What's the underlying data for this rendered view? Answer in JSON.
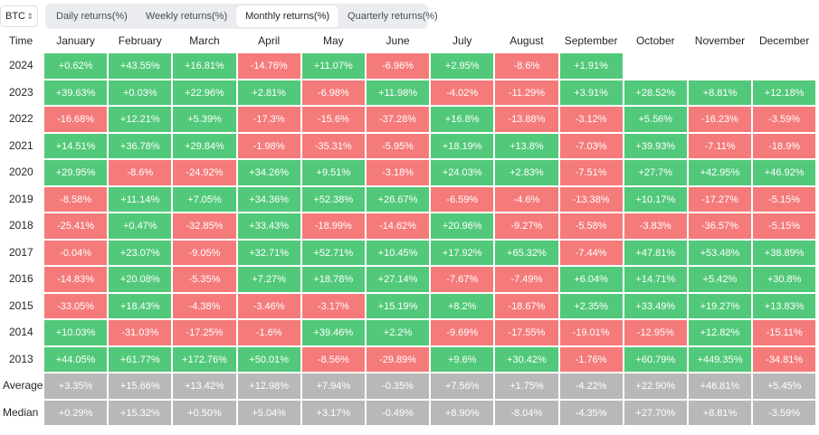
{
  "asset_select": {
    "value": "BTC"
  },
  "tabs": [
    {
      "label": "Daily returns(%)",
      "active": false
    },
    {
      "label": "Weekly returns(%)",
      "active": false
    },
    {
      "label": "Monthly returns(%)",
      "active": true
    },
    {
      "label": "Quarterly returns(%)",
      "active": false
    }
  ],
  "table": {
    "header_label": "Time",
    "months": [
      "January",
      "February",
      "March",
      "April",
      "May",
      "June",
      "July",
      "August",
      "September",
      "October",
      "November",
      "December"
    ],
    "rows": [
      {
        "label": "2024",
        "kind": "year",
        "values": [
          "+0.62%",
          "+43.55%",
          "+16.81%",
          "-14.76%",
          "+11.07%",
          "-6.96%",
          "+2.95%",
          "-8.6%",
          "+1.91%",
          "",
          "",
          ""
        ]
      },
      {
        "label": "2023",
        "kind": "year",
        "values": [
          "+39.63%",
          "+0.03%",
          "+22.96%",
          "+2.81%",
          "-6.98%",
          "+11.98%",
          "-4.02%",
          "-11.29%",
          "+3.91%",
          "+28.52%",
          "+8.81%",
          "+12.18%"
        ]
      },
      {
        "label": "2022",
        "kind": "year",
        "values": [
          "-16.68%",
          "+12.21%",
          "+5.39%",
          "-17.3%",
          "-15.6%",
          "-37.28%",
          "+16.8%",
          "-13.88%",
          "-3.12%",
          "+5.56%",
          "-16.23%",
          "-3.59%"
        ]
      },
      {
        "label": "2021",
        "kind": "year",
        "values": [
          "+14.51%",
          "+36.78%",
          "+29.84%",
          "-1.98%",
          "-35.31%",
          "-5.95%",
          "+18.19%",
          "+13.8%",
          "-7.03%",
          "+39.93%",
          "-7.11%",
          "-18.9%"
        ]
      },
      {
        "label": "2020",
        "kind": "year",
        "values": [
          "+29.95%",
          "-8.6%",
          "-24.92%",
          "+34.26%",
          "+9.51%",
          "-3.18%",
          "+24.03%",
          "+2.83%",
          "-7.51%",
          "+27.7%",
          "+42.95%",
          "+46.92%"
        ]
      },
      {
        "label": "2019",
        "kind": "year",
        "values": [
          "-8.58%",
          "+11.14%",
          "+7.05%",
          "+34.36%",
          "+52.38%",
          "+26.67%",
          "-6.59%",
          "-4.6%",
          "-13.38%",
          "+10.17%",
          "-17.27%",
          "-5.15%"
        ]
      },
      {
        "label": "2018",
        "kind": "year",
        "values": [
          "-25.41%",
          "+0.47%",
          "-32.85%",
          "+33.43%",
          "-18.99%",
          "-14.62%",
          "+20.96%",
          "-9.27%",
          "-5.58%",
          "-3.83%",
          "-36.57%",
          "-5.15%"
        ]
      },
      {
        "label": "2017",
        "kind": "year",
        "values": [
          "-0.04%",
          "+23.07%",
          "-9.05%",
          "+32.71%",
          "+52.71%",
          "+10.45%",
          "+17.92%",
          "+65.32%",
          "-7.44%",
          "+47.81%",
          "+53.48%",
          "+38.89%"
        ]
      },
      {
        "label": "2016",
        "kind": "year",
        "values": [
          "-14.83%",
          "+20.08%",
          "-5.35%",
          "+7.27%",
          "+18.78%",
          "+27.14%",
          "-7.67%",
          "-7.49%",
          "+6.04%",
          "+14.71%",
          "+5.42%",
          "+30.8%"
        ]
      },
      {
        "label": "2015",
        "kind": "year",
        "values": [
          "-33.05%",
          "+18.43%",
          "-4.38%",
          "-3.46%",
          "-3.17%",
          "+15.19%",
          "+8.2%",
          "-18.67%",
          "+2.35%",
          "+33.49%",
          "+19.27%",
          "+13.83%"
        ]
      },
      {
        "label": "2014",
        "kind": "year",
        "values": [
          "+10.03%",
          "-31.03%",
          "-17.25%",
          "-1.6%",
          "+39.46%",
          "+2.2%",
          "-9.69%",
          "-17.55%",
          "-19.01%",
          "-12.95%",
          "+12.82%",
          "-15.11%"
        ]
      },
      {
        "label": "2013",
        "kind": "year",
        "values": [
          "+44.05%",
          "+61.77%",
          "+172.76%",
          "+50.01%",
          "-8.56%",
          "-29.89%",
          "+9.6%",
          "+30.42%",
          "-1.76%",
          "+60.79%",
          "+449.35%",
          "-34.81%"
        ]
      },
      {
        "label": "Average",
        "kind": "stat",
        "values": [
          "+3.35%",
          "+15.66%",
          "+13.42%",
          "+12.98%",
          "+7.94%",
          "-0.35%",
          "+7.56%",
          "+1.75%",
          "-4.22%",
          "+22.90%",
          "+46.81%",
          "+5.45%"
        ]
      },
      {
        "label": "Median",
        "kind": "stat",
        "values": [
          "+0.29%",
          "+15.32%",
          "+0.50%",
          "+5.04%",
          "+3.17%",
          "-0.49%",
          "+8.90%",
          "-8.04%",
          "-4.35%",
          "+27.70%",
          "+8.81%",
          "-3.59%"
        ]
      }
    ]
  },
  "colors": {
    "positive": "#52c97a",
    "negative": "#f57b7b",
    "stat": "#b8b8b8"
  }
}
